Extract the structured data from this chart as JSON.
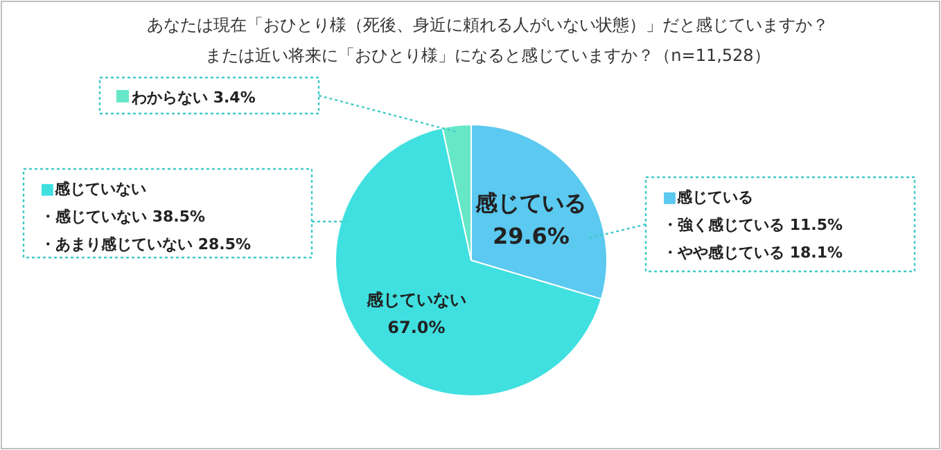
{
  "chart_data": {
    "type": "pie",
    "title": "あなたは現在「おひとり様（死後、身近に頼れる人がいない状態）」だと感じていますか？",
    "subtitle": "または近い将来に「おひとり様」になると感じていますか？（n=11,528）",
    "categories": [
      "感じている",
      "感じていない",
      "わからない"
    ],
    "values": [
      29.6,
      67.0,
      3.4
    ],
    "colors": [
      "#5bc9f0",
      "#40e0e0",
      "#66e8c8"
    ],
    "value_labels": [
      "29.6%",
      "67.0%",
      "3.4%"
    ],
    "annotations": [
      "■感じていない",
      "・感じていない 38.5%",
      "・あまり感じていない 28.5%",
      "■感じている",
      "・強く感じている 11.5%",
      "・やや感じている 18.1%"
    ]
  }
}
